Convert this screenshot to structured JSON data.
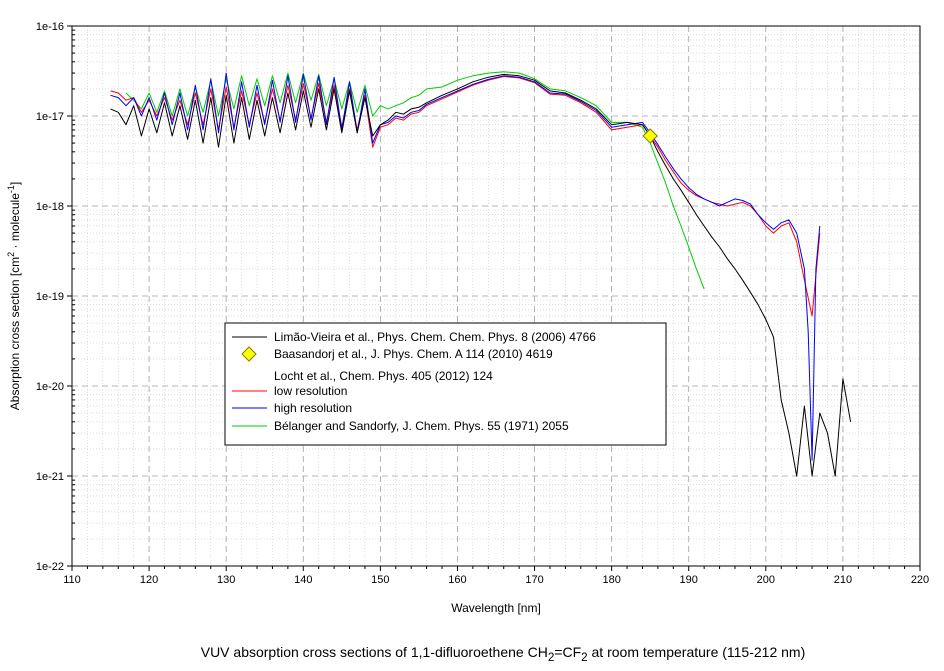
{
  "caption": {
    "prefix": "VUV absorption cross sections of 1,1-difluoroethene CH",
    "sub1": "2",
    "mid": "=CF",
    "sub2": "2",
    "suffix": " at room temperature (115-212 nm)"
  },
  "chart_data": {
    "type": "line",
    "xlabel": "Wavelength [nm]",
    "ylabel": {
      "prefix": "Absorption cross section [cm",
      "sup1": "2",
      "mid": " · molecule",
      "sup2": "-1",
      "suffix": "]"
    },
    "xlim": [
      110,
      220
    ],
    "ylim": [
      1e-22,
      1e-16
    ],
    "yscale": "log",
    "grid": true,
    "legend_position": "center-left",
    "x_ticks": [
      110,
      120,
      130,
      140,
      150,
      160,
      170,
      180,
      190,
      200,
      210,
      220
    ],
    "x_tick_labels": [
      "110",
      "120",
      "130",
      "140",
      "150",
      "160",
      "170",
      "180",
      "190",
      "200",
      "210",
      "220"
    ],
    "y_ticks": [
      1e-22,
      1e-21,
      1e-20,
      1e-19,
      1e-18,
      1e-17,
      1e-16
    ],
    "y_tick_labels": [
      "1e-22",
      "1e-21",
      "1e-20",
      "1e-19",
      "1e-18",
      "1e-17",
      "1e-16"
    ],
    "legend": [
      {
        "label": "Limão-Vieira et al., Phys. Chem. Chem. Phys. 8 (2006) 4766",
        "symbol": "line",
        "color": "#000000"
      },
      {
        "label": "Baasandorj et al., J. Phys. Chem. A 114 (2010) 4619",
        "symbol": "diamond",
        "color": "#ffff00"
      },
      {
        "label": "Locht et al., Chem. Phys. 405 (2012) 124",
        "symbol": "none",
        "color": ""
      },
      {
        "label": "low resolution",
        "symbol": "line",
        "color": "#ff0000"
      },
      {
        "label": "high resolution",
        "symbol": "line",
        "color": "#0000ff"
      },
      {
        "label": "Bélanger and Sandorfy, J. Chem. Phys. 55 (1971) 2055",
        "symbol": "line",
        "color": "#00cc00"
      }
    ],
    "series": [
      {
        "name": "Limão-Vieira et al., Phys. Chem. Chem. Phys. 8 (2006) 4766",
        "color": "#000000",
        "x": [
          115,
          116,
          117,
          118,
          119,
          120,
          121,
          122,
          123,
          124,
          125,
          126,
          127,
          128,
          129,
          130,
          131,
          132,
          133,
          134,
          135,
          136,
          137,
          138,
          139,
          140,
          141,
          142,
          143,
          144,
          145,
          146,
          147,
          148,
          149,
          150,
          151,
          152,
          153,
          154,
          155,
          156,
          158,
          160,
          162,
          164,
          166,
          168,
          170,
          172,
          174,
          176,
          178,
          180,
          182,
          184,
          185,
          186,
          187,
          188,
          189,
          190,
          191,
          192,
          193,
          194,
          195,
          196,
          197,
          198,
          199,
          200,
          201,
          202,
          203,
          204,
          205,
          206,
          207,
          208,
          209,
          210,
          211
        ],
        "y": [
          1.2e-17,
          1.1e-17,
          8e-18,
          1.3e-17,
          6e-18,
          1.2e-17,
          6.5e-18,
          1.4e-17,
          6e-18,
          1.3e-17,
          5.5e-18,
          1.5e-17,
          5e-18,
          1.6e-17,
          4.5e-18,
          1.7e-17,
          5e-18,
          1.6e-17,
          5.5e-18,
          1.5e-17,
          6e-18,
          1.6e-17,
          6.5e-18,
          1.8e-17,
          7e-18,
          1.9e-17,
          7.5e-18,
          2e-17,
          7e-18,
          2e-17,
          6.5e-18,
          1.9e-17,
          6.5e-18,
          1.6e-17,
          6e-18,
          8e-18,
          9e-18,
          1.1e-17,
          1.05e-17,
          1.2e-17,
          1.25e-17,
          1.4e-17,
          1.7e-17,
          2e-17,
          2.4e-17,
          2.7e-17,
          2.9e-17,
          2.8e-17,
          2.5e-17,
          1.9e-17,
          1.8e-17,
          1.5e-17,
          1.2e-17,
          8e-18,
          8.5e-18,
          8e-18,
          6e-18,
          4e-18,
          2.8e-18,
          2e-18,
          1.5e-18,
          1.1e-18,
          8e-19,
          6e-19,
          4.5e-19,
          3.5e-19,
          2.6e-19,
          2e-19,
          1.5e-19,
          1.1e-19,
          8e-20,
          5.5e-20,
          3.5e-20,
          7e-21,
          3e-21,
          1e-21,
          6e-21,
          1e-21,
          5e-21,
          3e-21,
          1e-21,
          1.2e-20,
          4e-21
        ]
      },
      {
        "name": "low resolution",
        "color": "#ff0000",
        "x": [
          115,
          116,
          117,
          118,
          119,
          120,
          121,
          122,
          123,
          124,
          125,
          126,
          127,
          128,
          129,
          130,
          131,
          132,
          133,
          134,
          135,
          136,
          137,
          138,
          139,
          140,
          141,
          142,
          143,
          144,
          145,
          146,
          147,
          148,
          149,
          150,
          151,
          152,
          153,
          154,
          155,
          156,
          158,
          160,
          162,
          164,
          166,
          168,
          170,
          172,
          174,
          176,
          178,
          180,
          182,
          184,
          185,
          186,
          187,
          188,
          189,
          190,
          191,
          192,
          193,
          194,
          195,
          196,
          197,
          198,
          199,
          200,
          201,
          202,
          203,
          204,
          205,
          206,
          207
        ],
        "y": [
          1.9e-17,
          1.8e-17,
          1.5e-17,
          1.6e-17,
          1.1e-17,
          1.5e-17,
          1e-17,
          1.6e-17,
          9e-18,
          1.5e-17,
          8e-18,
          1.8e-17,
          8e-18,
          2e-17,
          7e-18,
          2.1e-17,
          7.5e-18,
          1.9e-17,
          8e-18,
          1.8e-17,
          8.5e-18,
          2e-17,
          9e-18,
          2.2e-17,
          9e-18,
          2.3e-17,
          9.5e-18,
          2.3e-17,
          8.5e-18,
          2.2e-17,
          7.5e-18,
          2e-17,
          7e-18,
          1.7e-17,
          4.5e-18,
          7.5e-18,
          8e-18,
          9.5e-18,
          9e-18,
          1.05e-17,
          1.1e-17,
          1.3e-17,
          1.55e-17,
          1.85e-17,
          2.2e-17,
          2.5e-17,
          2.75e-17,
          2.65e-17,
          2.35e-17,
          1.75e-17,
          1.7e-17,
          1.4e-17,
          1.1e-17,
          7e-18,
          7.5e-18,
          8e-18,
          6e-18,
          4.5e-18,
          3.2e-18,
          2.4e-18,
          1.8e-18,
          1.5e-18,
          1.3e-18,
          1.2e-18,
          1.1e-18,
          1.05e-18,
          1e-18,
          1.05e-18,
          1.1e-18,
          1e-18,
          8e-19,
          6e-19,
          5e-19,
          6e-19,
          6.5e-19,
          4e-19,
          1.5e-19,
          6e-20,
          5e-19
        ]
      },
      {
        "name": "high resolution",
        "color": "#0000ff",
        "x": [
          115,
          116,
          117,
          118,
          119,
          120,
          121,
          122,
          123,
          124,
          125,
          126,
          127,
          128,
          129,
          130,
          131,
          132,
          133,
          134,
          135,
          136,
          137,
          138,
          139,
          140,
          141,
          142,
          143,
          144,
          145,
          146,
          147,
          148,
          149,
          150,
          151,
          152,
          153,
          154,
          155,
          156,
          158,
          160,
          162,
          164,
          166,
          168,
          170,
          172,
          174,
          176,
          178,
          180,
          182,
          184,
          185,
          186,
          187,
          188,
          189,
          190,
          191,
          192,
          193,
          194,
          195,
          196,
          197,
          198,
          199,
          200,
          201,
          202,
          203,
          204,
          205,
          205.5,
          206,
          206.5,
          207
        ],
        "y": [
          1.7e-17,
          1.6e-17,
          1.3e-17,
          1.6e-17,
          1e-17,
          1.6e-17,
          9e-18,
          1.8e-17,
          8e-18,
          1.8e-17,
          7e-18,
          2.2e-17,
          7e-18,
          2.6e-17,
          6.5e-18,
          3e-17,
          7e-18,
          2.4e-17,
          7.5e-18,
          2.2e-17,
          8e-18,
          2.5e-17,
          8.5e-18,
          2.8e-17,
          8.5e-18,
          2.9e-17,
          9e-18,
          2.8e-17,
          8e-18,
          2.7e-17,
          7e-18,
          2.4e-17,
          6.5e-18,
          2e-17,
          5e-18,
          8e-18,
          8.5e-18,
          1e-17,
          9.5e-18,
          1.1e-17,
          1.15e-17,
          1.35e-17,
          1.6e-17,
          1.9e-17,
          2.25e-17,
          2.55e-17,
          2.8e-17,
          2.7e-17,
          2.4e-17,
          1.8e-17,
          1.75e-17,
          1.45e-17,
          1.15e-17,
          7.5e-18,
          8e-18,
          8.5e-18,
          6.5e-18,
          4.8e-18,
          3.5e-18,
          2.6e-18,
          2e-18,
          1.6e-18,
          1.35e-18,
          1.2e-18,
          1.1e-18,
          1e-18,
          1.1e-18,
          1.2e-18,
          1.15e-18,
          1.05e-18,
          8e-19,
          6.5e-19,
          5.5e-19,
          6.5e-19,
          7e-19,
          5e-19,
          2e-19,
          4e-20,
          1.5e-21,
          2e-19,
          6e-19
        ]
      },
      {
        "name": "Bélanger and Sandorfy, J. Chem. Phys. 55 (1971) 2055",
        "color": "#00cc00",
        "x": [
          117,
          118,
          119,
          120,
          121,
          122,
          123,
          124,
          125,
          126,
          127,
          128,
          129,
          130,
          131,
          132,
          133,
          134,
          135,
          136,
          137,
          138,
          139,
          140,
          141,
          142,
          143,
          144,
          145,
          146,
          147,
          148,
          149,
          150,
          151,
          152,
          153,
          154,
          155,
          156,
          158,
          160,
          162,
          164,
          166,
          168,
          170,
          172,
          174,
          176,
          178,
          180,
          182,
          184,
          185,
          186,
          187,
          188,
          189,
          190,
          191,
          192
        ],
        "y": [
          1.8e-17,
          1.5e-17,
          1.2e-17,
          1.8e-17,
          1.1e-17,
          1.9e-17,
          1e-17,
          2e-17,
          1e-17,
          2.1e-17,
          1.1e-17,
          2.5e-17,
          1e-17,
          2.6e-17,
          1.2e-17,
          2.8e-17,
          1.3e-17,
          2.6e-17,
          1.3e-17,
          2.8e-17,
          1.4e-17,
          3e-17,
          1.4e-17,
          3e-17,
          1.5e-17,
          2.9e-17,
          1.3e-17,
          2.6e-17,
          1.2e-17,
          2.4e-17,
          1.1e-17,
          2.2e-17,
          1e-17,
          1.3e-17,
          1.2e-17,
          1.3e-17,
          1.4e-17,
          1.6e-17,
          1.7e-17,
          2e-17,
          2.1e-17,
          2.5e-17,
          2.8e-17,
          3e-17,
          3.1e-17,
          3e-17,
          2.6e-17,
          2e-17,
          1.9e-17,
          1.6e-17,
          1.3e-17,
          8.5e-18,
          8.5e-18,
          7.5e-18,
          5e-18,
          3e-18,
          1.8e-18,
          1e-18,
          6e-19,
          3.5e-19,
          2e-19,
          1.2e-19
        ]
      },
      {
        "name": "Baasandorj et al., J. Phys. Chem. A 114 (2010) 4619",
        "color": "#ffff00",
        "marker": "diamond",
        "x": [
          185
        ],
        "y": [
          6e-18
        ]
      }
    ]
  }
}
